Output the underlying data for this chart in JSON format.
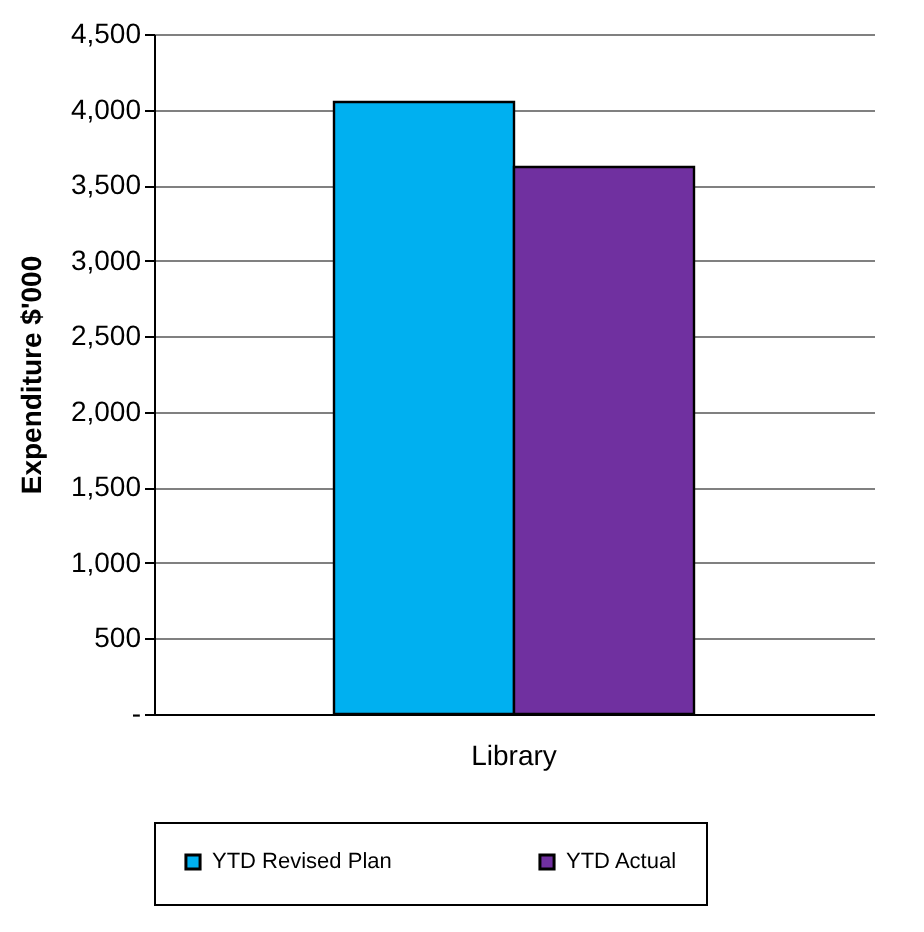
{
  "chart_data": {
    "type": "bar",
    "ylabel": "Expenditure $'000",
    "categories": [
      "Library"
    ],
    "series": [
      {
        "name": "YTD Revised Plan",
        "color": "#00b0f0",
        "values": [
          4050
        ]
      },
      {
        "name": "YTD Actual",
        "color": "#7030a0",
        "values": [
          3620
        ]
      }
    ],
    "ylim": [
      0,
      4500
    ],
    "yticks": [
      {
        "value": 0,
        "label": "-"
      },
      {
        "value": 500,
        "label": "500"
      },
      {
        "value": 1000,
        "label": "1,000"
      },
      {
        "value": 1500,
        "label": "1,500"
      },
      {
        "value": 2000,
        "label": "2,000"
      },
      {
        "value": 2500,
        "label": "2,500"
      },
      {
        "value": 3000,
        "label": "3,000"
      },
      {
        "value": 3500,
        "label": "3,500"
      },
      {
        "value": 4000,
        "label": "4,000"
      },
      {
        "value": 4500,
        "label": "4,500"
      }
    ],
    "grid": "y",
    "legend": "bottom"
  }
}
